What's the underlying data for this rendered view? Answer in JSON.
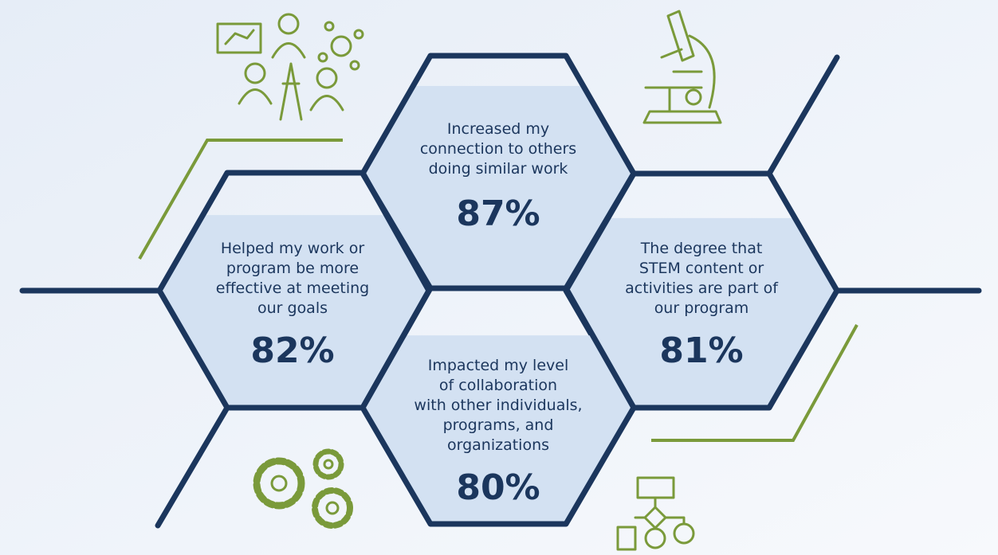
{
  "hexagons": [
    {
      "label_lines": [
        "Increased my",
        "connection to others",
        "doing similar work"
      ],
      "value": 87,
      "value_label": "87%"
    },
    {
      "label_lines": [
        "Helped my work or",
        "program be more",
        "effective at meeting",
        "our goals"
      ],
      "value": 82,
      "value_label": "82%"
    },
    {
      "label_lines": [
        "The degree that",
        "STEM content or",
        "activities are part of",
        "our program"
      ],
      "value": 81,
      "value_label": "81%"
    },
    {
      "label_lines": [
        "Impacted my level",
        "of collaboration",
        "with other individuals,",
        "programs, and",
        "organizations"
      ],
      "value": 80,
      "value_label": "80%"
    }
  ]
}
